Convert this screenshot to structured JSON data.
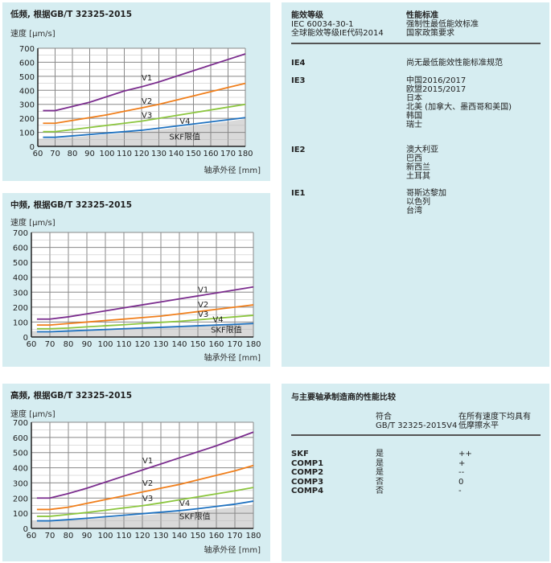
{
  "colors": {
    "panel_bg": "#d6edf1",
    "V1": "#7b2d8e",
    "V2": "#f07f1c",
    "V3": "#8cc63f",
    "V4": "#1f72c0",
    "SKF": "#d9d9d9"
  },
  "chart_data": [
    {
      "type": "line",
      "title": "低频, 根据GB/T 32325-2015",
      "ylabel": "速度 [µm/s]",
      "xlabel": "轴承外径 [mm]",
      "xlim": [
        60,
        180
      ],
      "ylim": [
        0,
        700
      ],
      "xticks": [
        60,
        70,
        80,
        90,
        100,
        110,
        120,
        130,
        140,
        150,
        160,
        170,
        180
      ],
      "yticks": [
        0,
        100,
        200,
        300,
        400,
        500,
        600,
        700
      ],
      "grid": true,
      "x": [
        63,
        70,
        80,
        90,
        100,
        110,
        120,
        130,
        140,
        150,
        160,
        170,
        180
      ],
      "series": [
        {
          "name": "V1",
          "values": [
            255,
            255,
            285,
            315,
            355,
            395,
            425,
            460,
            500,
            540,
            580,
            620,
            660
          ]
        },
        {
          "name": "V2",
          "values": [
            165,
            165,
            185,
            205,
            225,
            250,
            275,
            300,
            330,
            360,
            390,
            420,
            450
          ]
        },
        {
          "name": "V3",
          "values": [
            105,
            105,
            120,
            135,
            150,
            165,
            180,
            200,
            220,
            240,
            260,
            280,
            300
          ]
        },
        {
          "name": "V4",
          "values": [
            65,
            65,
            75,
            85,
            95,
            105,
            115,
            130,
            145,
            160,
            175,
            190,
            205
          ]
        }
      ],
      "area": {
        "name": "SKF限值",
        "values": [
          55,
          55,
          65,
          75,
          85,
          95,
          105,
          118,
          132,
          147,
          162,
          178,
          195
        ]
      }
    },
    {
      "type": "line",
      "title": "中频, 根据GB/T 32325-2015",
      "ylabel": "速度 [µm/s]",
      "xlabel": "轴承外径 [mm]",
      "xlim": [
        60,
        180
      ],
      "ylim": [
        0,
        700
      ],
      "xticks": [
        60,
        70,
        80,
        90,
        100,
        110,
        120,
        130,
        140,
        150,
        160,
        170,
        180
      ],
      "yticks": [
        0,
        100,
        200,
        300,
        400,
        500,
        600,
        700
      ],
      "grid": true,
      "x": [
        63,
        70,
        80,
        90,
        100,
        110,
        120,
        130,
        140,
        150,
        160,
        170,
        180
      ],
      "series": [
        {
          "name": "V1",
          "values": [
            120,
            120,
            135,
            155,
            175,
            195,
            215,
            235,
            255,
            275,
            295,
            315,
            335
          ]
        },
        {
          "name": "V2",
          "values": [
            80,
            80,
            90,
            100,
            110,
            120,
            130,
            140,
            155,
            170,
            185,
            200,
            215
          ]
        },
        {
          "name": "V3",
          "values": [
            55,
            55,
            60,
            68,
            75,
            82,
            90,
            98,
            105,
            115,
            125,
            135,
            145
          ]
        },
        {
          "name": "V4",
          "values": [
            35,
            35,
            40,
            45,
            50,
            55,
            60,
            65,
            70,
            75,
            80,
            85,
            90
          ]
        }
      ],
      "area": {
        "name": "SKF限值",
        "values": [
          40,
          40,
          45,
          50,
          55,
          60,
          65,
          70,
          75,
          80,
          85,
          90,
          98
        ]
      }
    },
    {
      "type": "line",
      "title": "高频, 根据GB/T 32325-2015",
      "ylabel": "速度 [µm/s]",
      "xlabel": "轴承外径 [mm]",
      "xlim": [
        60,
        180
      ],
      "ylim": [
        0,
        700
      ],
      "xticks": [
        60,
        70,
        80,
        90,
        100,
        110,
        120,
        130,
        140,
        150,
        160,
        170,
        180
      ],
      "yticks": [
        0,
        100,
        200,
        300,
        400,
        500,
        600,
        700
      ],
      "grid": true,
      "x": [
        63,
        70,
        80,
        90,
        100,
        110,
        120,
        130,
        140,
        150,
        160,
        170,
        180
      ],
      "series": [
        {
          "name": "V1",
          "values": [
            200,
            200,
            230,
            265,
            305,
            345,
            385,
            425,
            465,
            505,
            545,
            590,
            635
          ]
        },
        {
          "name": "V2",
          "values": [
            125,
            125,
            140,
            165,
            190,
            215,
            240,
            265,
            290,
            320,
            350,
            380,
            415
          ]
        },
        {
          "name": "V3",
          "values": [
            80,
            80,
            92,
            105,
            120,
            135,
            150,
            168,
            188,
            208,
            228,
            248,
            270
          ]
        },
        {
          "name": "V4",
          "values": [
            50,
            50,
            58,
            67,
            77,
            87,
            97,
            107,
            117,
            130,
            145,
            160,
            180
          ]
        }
      ],
      "area": {
        "name": "SKF限值",
        "values": [
          50,
          50,
          55,
          62,
          70,
          78,
          86,
          95,
          105,
          115,
          127,
          140,
          158
        ]
      }
    }
  ],
  "efficiency": {
    "col1_header": [
      "能效等级",
      "IEC 60034-30-1",
      "全球能效等级IE代码2014"
    ],
    "col2_header": [
      "性能标准",
      "强制性最低能效标准",
      "国家政策要求"
    ],
    "rows": [
      {
        "level": "IE4",
        "items": [
          "尚无最低能效性能标准规范"
        ]
      },
      {
        "level": "IE3",
        "items": [
          "中国2016/2017",
          "欧盟2015/2017",
          "日本",
          "北美 (加拿大、墨西哥和美国)",
          "韩国",
          "瑞士"
        ]
      },
      {
        "level": "IE2",
        "items": [
          "澳大利亚",
          "巴西",
          "新西兰",
          "土耳其"
        ]
      },
      {
        "level": "IE1",
        "items": [
          "哥斯达黎加",
          "以色列",
          "台湾"
        ]
      }
    ]
  },
  "comparison": {
    "title": "与主要轴承制造商的性能比较",
    "col2_header": [
      "符合",
      "GB/T 32325-2015V4"
    ],
    "col3_header": [
      "在所有速度下均具有",
      "低摩擦水平"
    ],
    "rows": [
      {
        "name": "SKF",
        "compliant": "是",
        "friction": "++"
      },
      {
        "name": "COMP1",
        "compliant": "是",
        "friction": "+"
      },
      {
        "name": "COMP2",
        "compliant": "是",
        "friction": "--"
      },
      {
        "name": "COMP3",
        "compliant": "否",
        "friction": "0"
      },
      {
        "name": "COMP4",
        "compliant": "否",
        "friction": "-"
      }
    ]
  }
}
